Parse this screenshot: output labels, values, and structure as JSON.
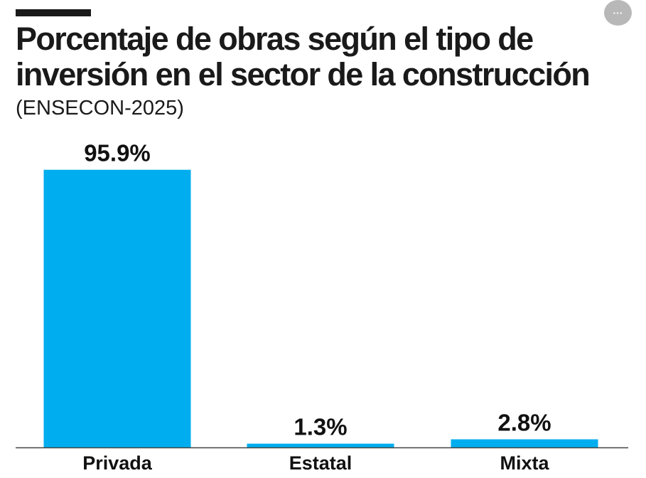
{
  "header": {
    "title": "Porcentaje de obras según el tipo de inversión en el sector de la  construcción",
    "subtitle": "(ENSECON-2025)",
    "menu_icon": "more-horizontal-icon",
    "menu_glyph": "···"
  },
  "colors": {
    "bar": "#00AEEF",
    "text": "#1A1A1A",
    "menu_button": "#B8B8B8"
  },
  "chart_data": {
    "type": "bar",
    "title": "Porcentaje de obras según el tipo de inversión en el sector de la  construcción",
    "subtitle": "(ENSECON-2025)",
    "categories": [
      "Privada",
      "Estatal",
      "Mixta"
    ],
    "values": [
      95.9,
      1.3,
      2.8
    ],
    "value_labels": [
      "95.9%",
      "1.3%",
      "2.8%"
    ],
    "unit": "%",
    "ylim": [
      0,
      100
    ],
    "grid": false,
    "legend": "none",
    "y_axis_visible": false
  }
}
